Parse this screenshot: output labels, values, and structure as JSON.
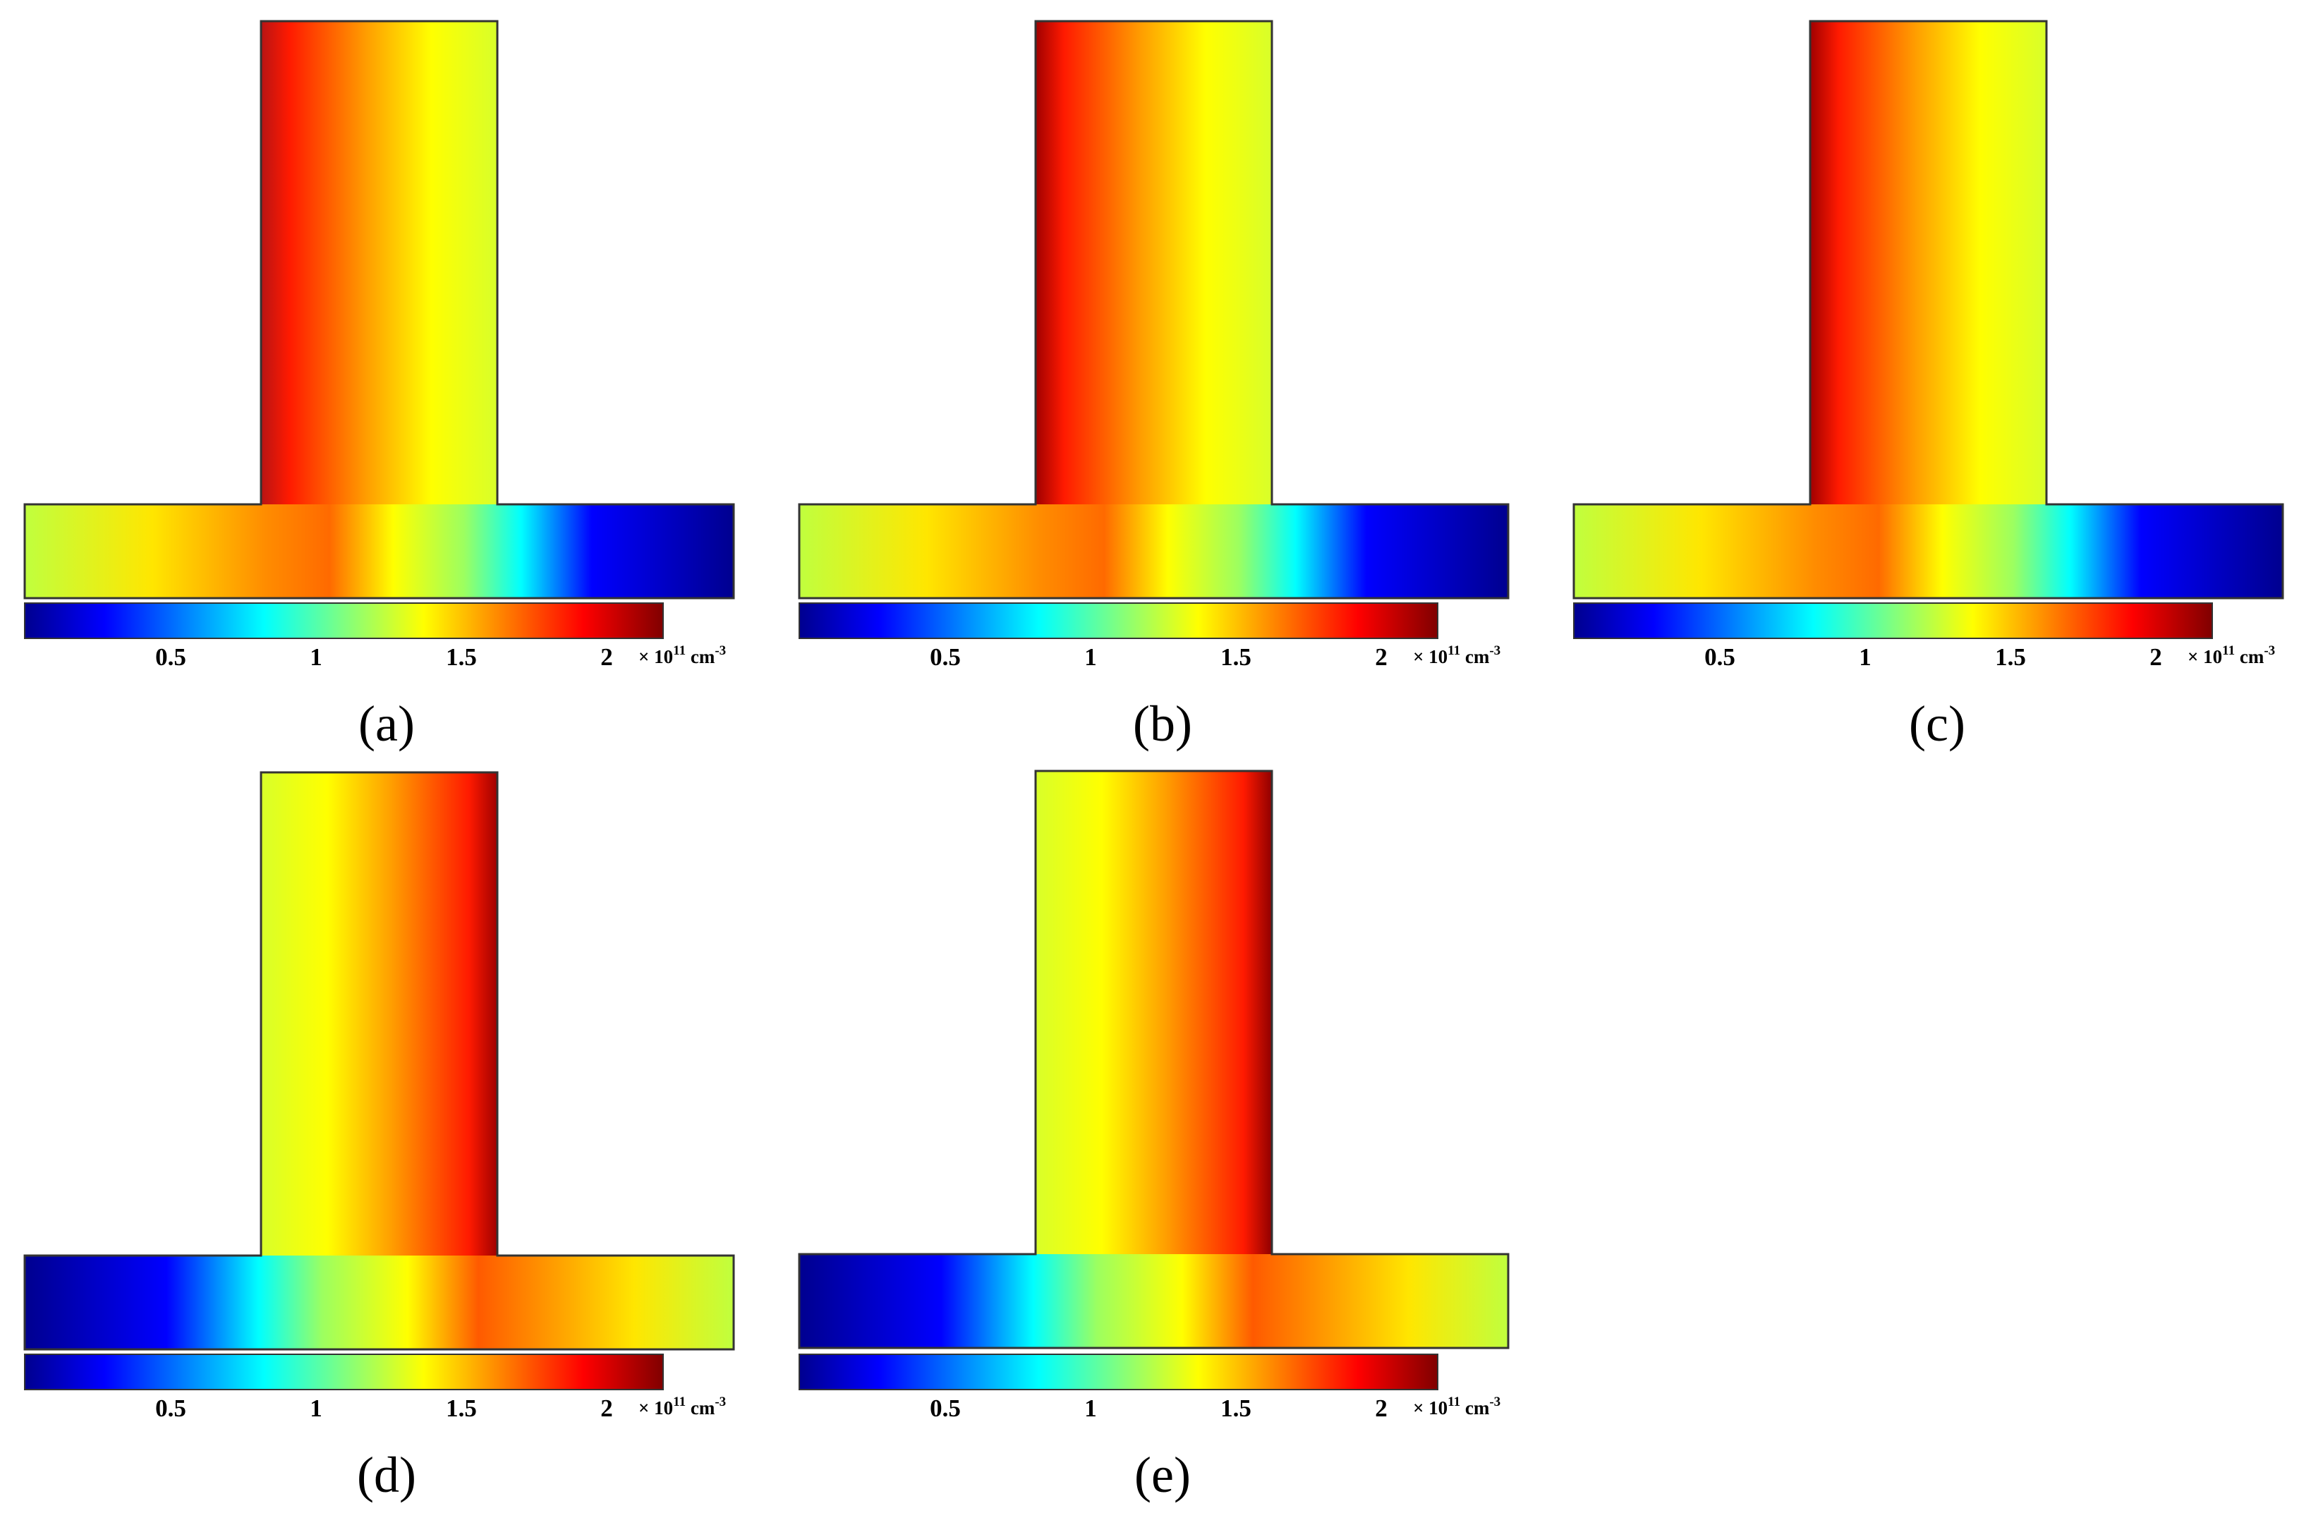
{
  "colorbar": {
    "ticks": [
      "0.5",
      "1",
      "1.5",
      "2"
    ],
    "tick_values": [
      0.5,
      1.0,
      1.5,
      2.0
    ],
    "range": [
      0.0,
      2.2
    ],
    "unit_prefix": "× 10",
    "unit_exponent": "11",
    "unit_base": " cm",
    "unit_power": "-3",
    "colormap": [
      "#00008f",
      "#0000ff",
      "#00ffff",
      "#ffff00",
      "#ff0000",
      "#800000"
    ]
  },
  "panels": [
    {
      "label": "(a)",
      "hot_side": "left"
    },
    {
      "label": "(b)",
      "hot_side": "left"
    },
    {
      "label": "(c)",
      "hot_side": "left"
    },
    {
      "label": "(d)",
      "hot_side": "right"
    },
    {
      "label": "(e)",
      "hot_side": "right"
    }
  ]
}
